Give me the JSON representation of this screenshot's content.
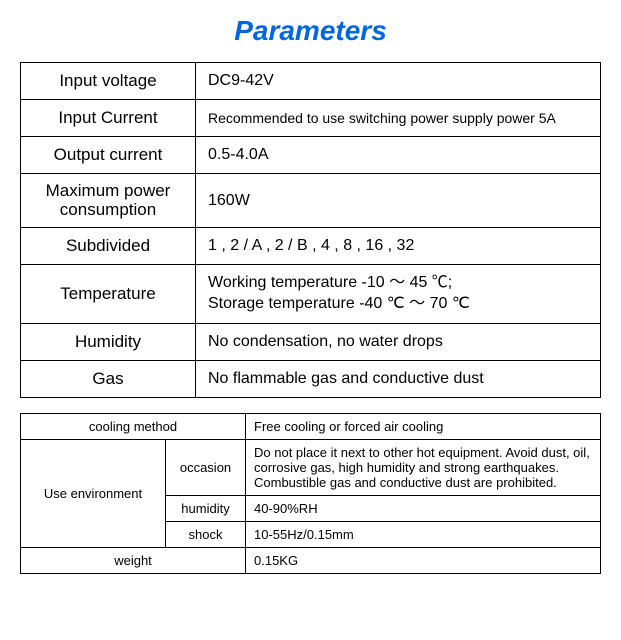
{
  "title": "Parameters",
  "title_color": "#0066e0",
  "main_table": {
    "rows": [
      {
        "label": "Input voltage",
        "value": "DC9-42V"
      },
      {
        "label": "Input Current",
        "value": "Recommended to use switching power supply power 5A",
        "small": true
      },
      {
        "label": "Output current",
        "value": "0.5-4.0A"
      },
      {
        "label": "Maximum power consumption",
        "value": "160W"
      },
      {
        "label": "Subdivided",
        "value": "1 , 2 / A , 2 / B , 4 , 8 , 16 , 32"
      },
      {
        "label": "Temperature",
        "value": "Working temperature -10 ～ 45 ℃;\nStorage temperature -40 ℃ ～ 70 ℃",
        "multiline": true
      },
      {
        "label": "Humidity",
        "value": "No condensation, no water drops"
      },
      {
        "label": "Gas",
        "value": "No flammable gas and conductive dust"
      }
    ]
  },
  "sub_table": {
    "cooling_label": "cooling method",
    "cooling_value": "Free cooling or forced air cooling",
    "use_env_label": "Use environment",
    "occasion_label": "occasion",
    "occasion_value": "Do not place it next to other hot equipment. Avoid dust, oil, corrosive gas, high humidity and strong earthquakes. Combustible gas and conductive dust are prohibited.",
    "humidity_label": "humidity",
    "humidity_value": "40-90%RH",
    "shock_label": "shock",
    "shock_value": "10-55Hz/0.15mm",
    "weight_label": "weight",
    "weight_value": "0.15KG"
  }
}
